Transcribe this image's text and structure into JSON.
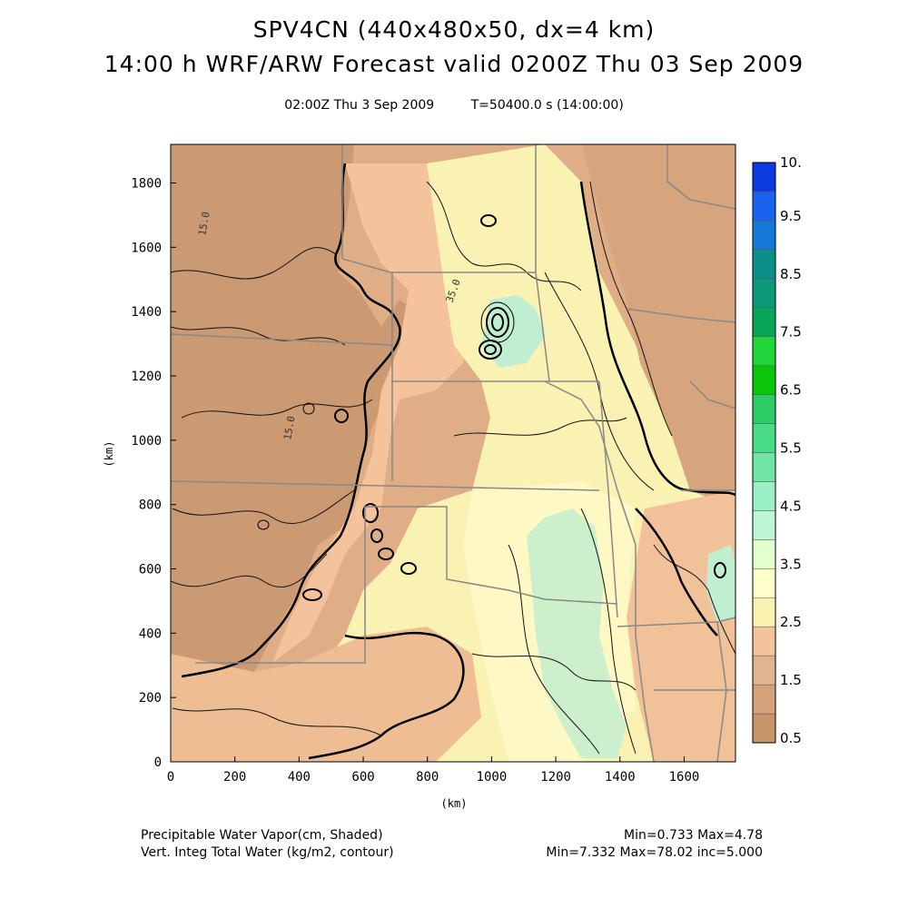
{
  "header": {
    "title_line1": "SPV4CN (440x480x50, dx=4 km)",
    "title_line2": "14:00 h WRF/ARW Forecast valid 0200Z Thu 03 Sep 2009",
    "valid_time": "02:00Z Thu  3 Sep 2009",
    "model_time": "T=50400.0 s (14:00:00)"
  },
  "axes": {
    "x_ticks": [
      "0",
      "200",
      "400",
      "600",
      "800",
      "1000",
      "1200",
      "1400",
      "1600"
    ],
    "y_ticks": [
      "0",
      "200",
      "400",
      "600",
      "800",
      "1000",
      "1200",
      "1400",
      "1600",
      "1800"
    ],
    "x_label": "(km)",
    "y_label": "(km)",
    "x_range_km": [
      0,
      1760
    ],
    "y_range_km": [
      0,
      1920
    ]
  },
  "colorbar": {
    "labels": [
      "0.5",
      "1.5",
      "2.5",
      "3.5",
      "4.5",
      "5.5",
      "6.5",
      "7.5",
      "8.5",
      "9.5",
      "10."
    ],
    "colors": [
      "#c8956a",
      "#d3a17a",
      "#dfb48e",
      "#f3c49b",
      "#f9f2b0",
      "#ffffcc",
      "#e2ffce",
      "#bff7d6",
      "#9af0c5",
      "#6fe6a6",
      "#46dd86",
      "#2ccc66",
      "#0ac60a",
      "#20d63a",
      "#08a656",
      "#0a9a7a",
      "#0a8f8a",
      "#1478d8",
      "#1a62f0",
      "#0a3ae0"
    ]
  },
  "map_labels": {
    "contour_150": "15.0",
    "contour_350": "35.0",
    "contour_150_b": "15.0"
  },
  "footer": {
    "left_line1": "Precipitable Water Vapor(cm, Shaded)",
    "left_line2": "Vert. Integ Total Water (kg/m2, contour)",
    "right_line1": "Min=0.733 Max=4.78",
    "right_line2": "Min=7.332 Max=78.02 inc=5.000"
  }
}
